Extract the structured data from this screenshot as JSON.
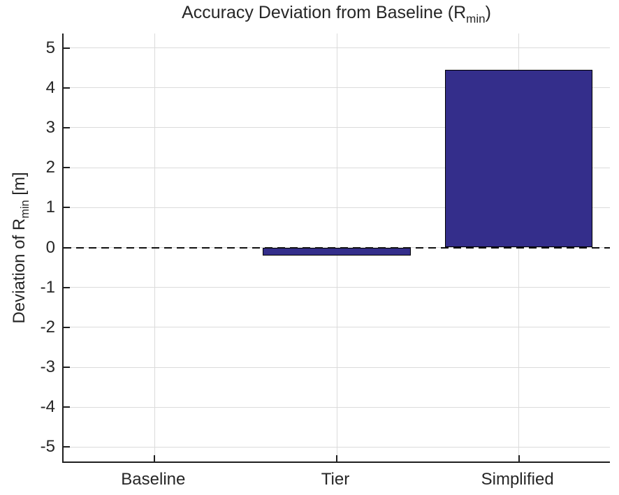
{
  "title": {
    "pre": "Accuracy Deviation from Baseline (R",
    "sub": "min",
    "post": ")"
  },
  "ylabel": {
    "pre": "Deviation of R",
    "sub": "min",
    "post": " [m]"
  },
  "chart_data": {
    "type": "bar",
    "title": "Accuracy Deviation from Baseline (R_min)",
    "xlabel": "",
    "ylabel": "Deviation of R_min [m]",
    "categories": [
      "Baseline",
      "Tier",
      "Simplified"
    ],
    "values": [
      0,
      -0.2,
      4.45
    ],
    "ylim": [
      -5.36,
      5.36
    ],
    "yticks": [
      -5,
      -4,
      -3,
      -2,
      -1,
      0,
      1,
      2,
      3,
      4,
      5
    ],
    "bar_width_fraction": 0.81,
    "bar_color": "#342E8B",
    "bar_edge_color": "#000000",
    "grid": true,
    "grid_color": "#DBDBDB",
    "axis_color": "#1F1F1F",
    "text_color": "#262626",
    "background": "#FFFFFF",
    "zero_line": {
      "style": "dashed",
      "color": "#111111",
      "y": 0
    },
    "legend": null
  }
}
